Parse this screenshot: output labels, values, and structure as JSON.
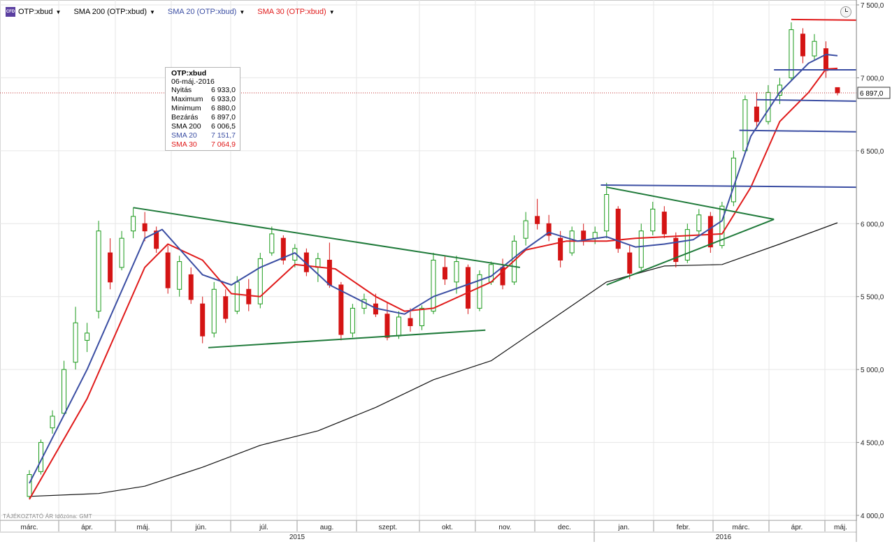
{
  "legend": {
    "symbol_icon": "cfd-icon",
    "symbol": "OTP:xbud",
    "sma200": "SMA 200 (OTP:xbud)",
    "sma20": "SMA 20 (OTP:xbud)",
    "sma30": "SMA 30 (OTP:xbud)"
  },
  "colors": {
    "candle_up": "#1a9a1a",
    "candle_down": "#d41414",
    "sma200": "#111111",
    "sma20": "#3b4ea3",
    "sma30": "#e01a1a",
    "trend_green": "#1f7a3a",
    "level_blue": "#3b4ea3",
    "level_red": "#e01a1a",
    "grid": "#e6e6e6",
    "current_price_line": "#c03030"
  },
  "tooltip": {
    "title": "OTP:xbud",
    "date": "06-máj.-2016",
    "rows": [
      {
        "label": "Nyitás",
        "value": "6 933,0",
        "color": "#000000"
      },
      {
        "label": "Maximum",
        "value": "6 933,0",
        "color": "#000000"
      },
      {
        "label": "Minimum",
        "value": "6 880,0",
        "color": "#000000"
      },
      {
        "label": "Bezárás",
        "value": "6 897,0",
        "color": "#000000"
      },
      {
        "label": "SMA 200",
        "value": "6 006,5",
        "color": "#000000"
      },
      {
        "label": "SMA 20",
        "value": "7 151,7",
        "color": "#3b4ea3"
      },
      {
        "label": "SMA 30",
        "value": "7 064,9",
        "color": "#e01a1a"
      }
    ]
  },
  "footer_note": "TÁJÉKOZTATÓ ÁR   Időzóna: GMT",
  "current_price_label": "6 897,0",
  "chart_data": {
    "type": "line",
    "title": "",
    "x_axis": {
      "months": [
        "márc.",
        "ápr.",
        "máj.",
        "jún.",
        "júl.",
        "aug.",
        "szept.",
        "okt.",
        "nov.",
        "dec.",
        "jan.",
        "febr.",
        "márc.",
        "ápr.",
        "máj."
      ],
      "years": [
        "2015",
        "2016"
      ]
    },
    "y_axis": {
      "ticks": [
        4000,
        4500,
        5000,
        5500,
        6000,
        6500,
        7000,
        7500
      ],
      "tick_labels": [
        "4 000,0",
        "4 500,0",
        "5 000,0",
        "5 500,0",
        "6 000,0",
        "6 500,0",
        "7 000,0",
        "7 500,0"
      ],
      "ylim": [
        4000,
        7500
      ],
      "position": "right"
    },
    "grid": true,
    "current_price": 6897,
    "sma200": [
      [
        0,
        4130
      ],
      [
        1.2,
        4150
      ],
      [
        2,
        4200
      ],
      [
        3,
        4330
      ],
      [
        4,
        4480
      ],
      [
        5,
        4580
      ],
      [
        6,
        4740
      ],
      [
        7,
        4930
      ],
      [
        8,
        5060
      ],
      [
        9,
        5330
      ],
      [
        10,
        5600
      ],
      [
        11,
        5710
      ],
      [
        12,
        5720
      ],
      [
        13,
        5860
      ],
      [
        14,
        6006
      ]
    ],
    "sma20": [
      [
        0,
        4220
      ],
      [
        1,
        5000
      ],
      [
        2,
        5900
      ],
      [
        2.3,
        5960
      ],
      [
        3,
        5650
      ],
      [
        3.5,
        5580
      ],
      [
        4,
        5700
      ],
      [
        4.6,
        5800
      ],
      [
        5.2,
        5580
      ],
      [
        6,
        5420
      ],
      [
        6.5,
        5380
      ],
      [
        7,
        5500
      ],
      [
        8,
        5640
      ],
      [
        8.5,
        5800
      ],
      [
        9,
        5940
      ],
      [
        9.5,
        5880
      ],
      [
        10,
        5910
      ],
      [
        10.5,
        5840
      ],
      [
        11,
        5860
      ],
      [
        11.5,
        5890
      ],
      [
        12,
        6020
      ],
      [
        12.5,
        6600
      ],
      [
        13,
        6900
      ],
      [
        13.5,
        7100
      ],
      [
        13.8,
        7160
      ],
      [
        14,
        7152
      ]
    ],
    "sma30": [
      [
        0,
        4110
      ],
      [
        1,
        4800
      ],
      [
        2,
        5700
      ],
      [
        2.4,
        5860
      ],
      [
        3,
        5750
      ],
      [
        3.5,
        5520
      ],
      [
        4,
        5500
      ],
      [
        4.6,
        5720
      ],
      [
        5.3,
        5690
      ],
      [
        6,
        5500
      ],
      [
        6.5,
        5400
      ],
      [
        7,
        5420
      ],
      [
        8,
        5600
      ],
      [
        8.6,
        5820
      ],
      [
        9.3,
        5880
      ],
      [
        10,
        5880
      ],
      [
        10.5,
        5900
      ],
      [
        11,
        5910
      ],
      [
        11.5,
        5920
      ],
      [
        12,
        5930
      ],
      [
        12.5,
        6250
      ],
      [
        13,
        6700
      ],
      [
        13.5,
        6900
      ],
      [
        13.8,
        7060
      ],
      [
        14,
        7065
      ]
    ],
    "candles": [
      {
        "x": 0.0,
        "o": 4130,
        "h": 4310,
        "l": 4120,
        "c": 4280
      },
      {
        "x": 0.2,
        "o": 4300,
        "h": 4520,
        "l": 4280,
        "c": 4500
      },
      {
        "x": 0.4,
        "o": 4600,
        "h": 4720,
        "l": 4560,
        "c": 4680
      },
      {
        "x": 0.6,
        "o": 4700,
        "h": 5060,
        "l": 4680,
        "c": 5000
      },
      {
        "x": 0.8,
        "o": 5050,
        "h": 5430,
        "l": 5000,
        "c": 5320
      },
      {
        "x": 1.0,
        "o": 5200,
        "h": 5320,
        "l": 5120,
        "c": 5250
      },
      {
        "x": 1.2,
        "o": 5400,
        "h": 6020,
        "l": 5350,
        "c": 5950
      },
      {
        "x": 1.4,
        "o": 5800,
        "h": 5900,
        "l": 5550,
        "c": 5600
      },
      {
        "x": 1.6,
        "o": 5700,
        "h": 5950,
        "l": 5680,
        "c": 5900
      },
      {
        "x": 1.8,
        "o": 5950,
        "h": 6110,
        "l": 5900,
        "c": 6050
      },
      {
        "x": 2.0,
        "o": 6000,
        "h": 6080,
        "l": 5880,
        "c": 5950
      },
      {
        "x": 2.2,
        "o": 5950,
        "h": 5980,
        "l": 5800,
        "c": 5830
      },
      {
        "x": 2.4,
        "o": 5800,
        "h": 5850,
        "l": 5520,
        "c": 5560
      },
      {
        "x": 2.6,
        "o": 5550,
        "h": 5780,
        "l": 5500,
        "c": 5740
      },
      {
        "x": 2.8,
        "o": 5650,
        "h": 5700,
        "l": 5450,
        "c": 5480
      },
      {
        "x": 3.0,
        "o": 5450,
        "h": 5500,
        "l": 5180,
        "c": 5230
      },
      {
        "x": 3.2,
        "o": 5250,
        "h": 5600,
        "l": 5220,
        "c": 5550
      },
      {
        "x": 3.4,
        "o": 5500,
        "h": 5550,
        "l": 5320,
        "c": 5350
      },
      {
        "x": 3.6,
        "o": 5400,
        "h": 5640,
        "l": 5380,
        "c": 5600
      },
      {
        "x": 3.8,
        "o": 5550,
        "h": 5620,
        "l": 5400,
        "c": 5450
      },
      {
        "x": 4.0,
        "o": 5450,
        "h": 5800,
        "l": 5420,
        "c": 5760
      },
      {
        "x": 4.2,
        "o": 5800,
        "h": 5980,
        "l": 5780,
        "c": 5930
      },
      {
        "x": 4.4,
        "o": 5900,
        "h": 5920,
        "l": 5720,
        "c": 5750
      },
      {
        "x": 4.6,
        "o": 5750,
        "h": 5860,
        "l": 5700,
        "c": 5830
      },
      {
        "x": 4.8,
        "o": 5800,
        "h": 5830,
        "l": 5640,
        "c": 5670
      },
      {
        "x": 5.0,
        "o": 5700,
        "h": 5800,
        "l": 5600,
        "c": 5760
      },
      {
        "x": 5.2,
        "o": 5750,
        "h": 5870,
        "l": 5560,
        "c": 5580
      },
      {
        "x": 5.4,
        "o": 5580,
        "h": 5600,
        "l": 5200,
        "c": 5240
      },
      {
        "x": 5.6,
        "o": 5250,
        "h": 5450,
        "l": 5220,
        "c": 5420
      },
      {
        "x": 5.8,
        "o": 5420,
        "h": 5520,
        "l": 5380,
        "c": 5480
      },
      {
        "x": 6.0,
        "o": 5450,
        "h": 5520,
        "l": 5360,
        "c": 5380
      },
      {
        "x": 6.2,
        "o": 5380,
        "h": 5460,
        "l": 5200,
        "c": 5220
      },
      {
        "x": 6.4,
        "o": 5230,
        "h": 5400,
        "l": 5210,
        "c": 5360
      },
      {
        "x": 6.6,
        "o": 5350,
        "h": 5420,
        "l": 5260,
        "c": 5300
      },
      {
        "x": 6.8,
        "o": 5300,
        "h": 5440,
        "l": 5270,
        "c": 5420
      },
      {
        "x": 7.0,
        "o": 5400,
        "h": 5800,
        "l": 5380,
        "c": 5750
      },
      {
        "x": 7.2,
        "o": 5700,
        "h": 5780,
        "l": 5580,
        "c": 5620
      },
      {
        "x": 7.4,
        "o": 5600,
        "h": 5780,
        "l": 5520,
        "c": 5740
      },
      {
        "x": 7.6,
        "o": 5700,
        "h": 5720,
        "l": 5380,
        "c": 5420
      },
      {
        "x": 7.8,
        "o": 5420,
        "h": 5680,
        "l": 5400,
        "c": 5650
      },
      {
        "x": 8.0,
        "o": 5600,
        "h": 5740,
        "l": 5580,
        "c": 5720
      },
      {
        "x": 8.2,
        "o": 5700,
        "h": 5760,
        "l": 5550,
        "c": 5580
      },
      {
        "x": 8.4,
        "o": 5600,
        "h": 5920,
        "l": 5580,
        "c": 5880
      },
      {
        "x": 8.6,
        "o": 5900,
        "h": 6080,
        "l": 5850,
        "c": 6020
      },
      {
        "x": 8.8,
        "o": 6050,
        "h": 6170,
        "l": 5960,
        "c": 6000
      },
      {
        "x": 9.0,
        "o": 6000,
        "h": 6060,
        "l": 5880,
        "c": 5920
      },
      {
        "x": 9.2,
        "o": 5900,
        "h": 5950,
        "l": 5700,
        "c": 5750
      },
      {
        "x": 9.4,
        "o": 5800,
        "h": 5980,
        "l": 5780,
        "c": 5950
      },
      {
        "x": 9.6,
        "o": 5950,
        "h": 6000,
        "l": 5850,
        "c": 5880
      },
      {
        "x": 9.8,
        "o": 5900,
        "h": 5980,
        "l": 5860,
        "c": 5940
      },
      {
        "x": 10.0,
        "o": 5950,
        "h": 6280,
        "l": 5900,
        "c": 6200
      },
      {
        "x": 10.2,
        "o": 6100,
        "h": 6120,
        "l": 5800,
        "c": 5830
      },
      {
        "x": 10.4,
        "o": 5800,
        "h": 5850,
        "l": 5620,
        "c": 5660
      },
      {
        "x": 10.6,
        "o": 5700,
        "h": 6000,
        "l": 5680,
        "c": 5950
      },
      {
        "x": 10.8,
        "o": 5950,
        "h": 6150,
        "l": 5920,
        "c": 6100
      },
      {
        "x": 11.0,
        "o": 6080,
        "h": 6120,
        "l": 5900,
        "c": 5930
      },
      {
        "x": 11.2,
        "o": 5900,
        "h": 5940,
        "l": 5700,
        "c": 5740
      },
      {
        "x": 11.4,
        "o": 5750,
        "h": 6000,
        "l": 5730,
        "c": 5960
      },
      {
        "x": 11.6,
        "o": 5950,
        "h": 6100,
        "l": 5920,
        "c": 6060
      },
      {
        "x": 11.8,
        "o": 6050,
        "h": 6080,
        "l": 5800,
        "c": 5840
      },
      {
        "x": 12.0,
        "o": 5850,
        "h": 6150,
        "l": 5830,
        "c": 6120
      },
      {
        "x": 12.2,
        "o": 6150,
        "h": 6500,
        "l": 6120,
        "c": 6450
      },
      {
        "x": 12.4,
        "o": 6500,
        "h": 6880,
        "l": 6480,
        "c": 6850
      },
      {
        "x": 12.6,
        "o": 6800,
        "h": 6900,
        "l": 6650,
        "c": 6700
      },
      {
        "x": 12.8,
        "o": 6700,
        "h": 6950,
        "l": 6680,
        "c": 6900
      },
      {
        "x": 13.0,
        "o": 6880,
        "h": 7000,
        "l": 6820,
        "c": 6950
      },
      {
        "x": 13.2,
        "o": 7000,
        "h": 7380,
        "l": 6980,
        "c": 7330
      },
      {
        "x": 13.4,
        "o": 7300,
        "h": 7340,
        "l": 7100,
        "c": 7150
      },
      {
        "x": 13.6,
        "o": 7150,
        "h": 7300,
        "l": 7120,
        "c": 7250
      },
      {
        "x": 13.8,
        "o": 7200,
        "h": 7250,
        "l": 7000,
        "c": 7050
      },
      {
        "x": 14.0,
        "o": 6933,
        "h": 6933,
        "l": 6880,
        "c": 6897
      }
    ],
    "lines": [
      {
        "name": "triangle-upper",
        "color": "trend_green",
        "points": [
          [
            1.8,
            6110
          ],
          [
            8.5,
            5700
          ]
        ]
      },
      {
        "name": "triangle-lower",
        "color": "trend_green",
        "points": [
          [
            3.1,
            5150
          ],
          [
            7.9,
            5270
          ]
        ]
      },
      {
        "name": "wedge-upper",
        "color": "trend_green",
        "points": [
          [
            10.0,
            6250
          ],
          [
            12.9,
            6030
          ]
        ]
      },
      {
        "name": "wedge-lower",
        "color": "trend_green",
        "points": [
          [
            10.0,
            5580
          ],
          [
            12.9,
            6030
          ]
        ]
      },
      {
        "name": "level-6250",
        "color": "level_blue",
        "points": [
          [
            9.9,
            6265
          ],
          [
            14.4,
            6250
          ]
        ]
      },
      {
        "name": "level-6630",
        "color": "level_blue",
        "points": [
          [
            12.3,
            6640
          ],
          [
            14.4,
            6630
          ]
        ]
      },
      {
        "name": "level-6850",
        "color": "level_blue",
        "points": [
          [
            12.6,
            6850
          ],
          [
            14.4,
            6840
          ]
        ]
      },
      {
        "name": "level-7050",
        "color": "level_blue",
        "points": [
          [
            12.9,
            7055
          ],
          [
            14.4,
            7055
          ]
        ]
      },
      {
        "name": "level-7400",
        "color": "level_red",
        "points": [
          [
            13.2,
            7400
          ],
          [
            14.4,
            7395
          ]
        ]
      }
    ]
  }
}
